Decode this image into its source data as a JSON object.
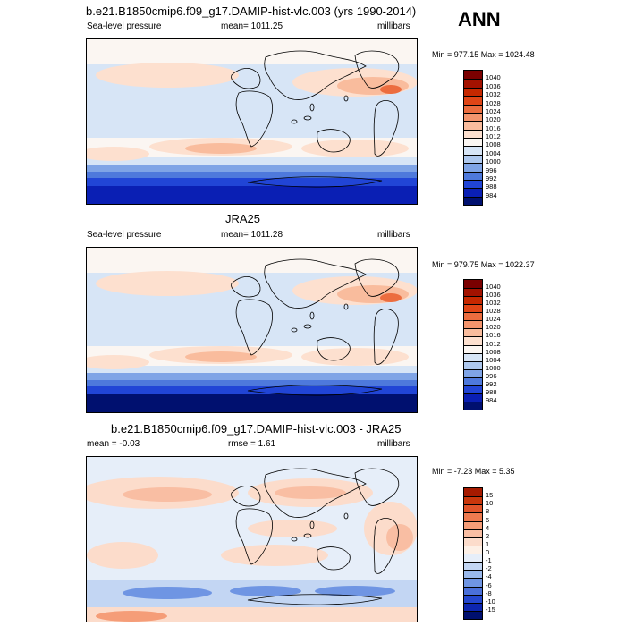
{
  "season": "ANN",
  "panels": [
    {
      "title": "b.e21.B1850cmip6.f09_g17.DAMIP-hist-vlc.003 (yrs 1990-2014)",
      "left_label": "Sea-level pressure",
      "center_label": "mean= 1011.25",
      "right_label": "millibars",
      "minmax": "Min = 977.15 Max = 1024.48",
      "colorbar": {
        "levels": [
          "1040",
          "1036",
          "1032",
          "1028",
          "1024",
          "1020",
          "1016",
          "1012",
          "1008",
          "1004",
          "1000",
          "996",
          "992",
          "988",
          "984"
        ],
        "colors": [
          "#7a0000",
          "#a31200",
          "#c62800",
          "#e04516",
          "#ec6d3f",
          "#f4956d",
          "#f9bc9d",
          "#fde0cf",
          "#fbf6f2",
          "#d7e5f6",
          "#aec8ee",
          "#7fa4e6",
          "#4e79dc",
          "#2145d6",
          "#0a1fb4",
          "#00106f"
        ]
      }
    },
    {
      "title": "JRA25",
      "left_label": "Sea-level pressure",
      "center_label": "mean= 1011.28",
      "right_label": "millibars",
      "minmax": "Min = 979.75 Max = 1022.37",
      "colorbar": {
        "levels": [
          "1040",
          "1036",
          "1032",
          "1028",
          "1024",
          "1020",
          "1016",
          "1012",
          "1008",
          "1004",
          "1000",
          "996",
          "992",
          "988",
          "984"
        ],
        "colors": [
          "#7a0000",
          "#a31200",
          "#c62800",
          "#e04516",
          "#ec6d3f",
          "#f4956d",
          "#f9bc9d",
          "#fde0cf",
          "#fbf6f2",
          "#d7e5f6",
          "#aec8ee",
          "#7fa4e6",
          "#4e79dc",
          "#2145d6",
          "#0a1fb4",
          "#00106f"
        ]
      }
    },
    {
      "title": "b.e21.B1850cmip6.f09_g17.DAMIP-hist-vlc.003 - JRA25",
      "left_label": "mean =  -0.03",
      "center_label": "rmse =   1.61",
      "right_label": "millibars",
      "minmax": "Min =  -7.23 Max =   5.35",
      "colorbar": {
        "levels": [
          "15",
          "10",
          "8",
          "6",
          "4",
          "2",
          "1",
          "0",
          "-1",
          "-2",
          "-4",
          "-6",
          "-8",
          "-10",
          "-15"
        ],
        "colors": [
          "#a61a00",
          "#c9370c",
          "#e0542a",
          "#ee7a4f",
          "#f59d78",
          "#f9bea3",
          "#fcdccb",
          "#fdf0e6",
          "#e6eef9",
          "#c3d6f3",
          "#9ab9ec",
          "#6f95e3",
          "#4a70da",
          "#2447cf",
          "#0d26b0",
          "#00106f"
        ]
      }
    }
  ]
}
